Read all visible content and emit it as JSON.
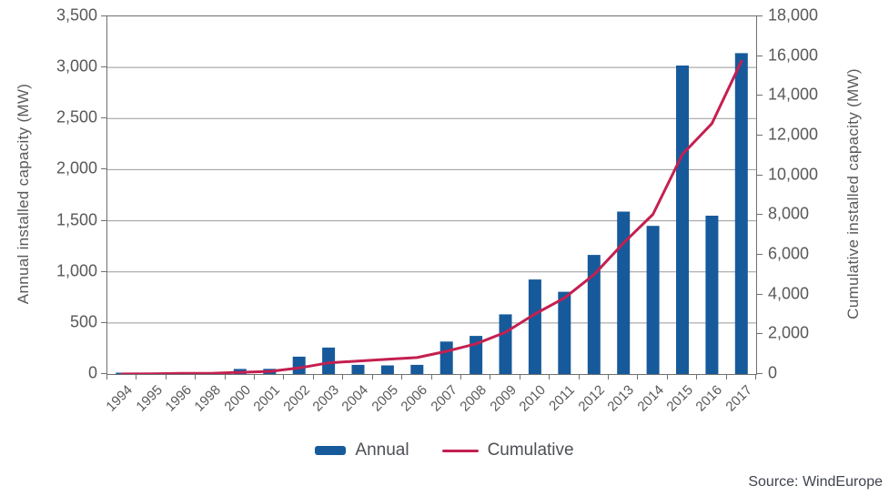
{
  "chart": {
    "left_axis_title": "Annual installed capacity (MW)",
    "right_axis_title": "Cumulative installed capacity (MW)",
    "legend": {
      "annual_label": "Annual",
      "cumulative_label": "Cumulative"
    },
    "source_text": "Source: WindEurope",
    "colors": {
      "bar": "#175A9B",
      "line": "#C42050",
      "grid": "#999999",
      "frame": "#707070",
      "tick_text": "#595959",
      "legend_text": "#4d5055",
      "source_text": "#3f4450"
    }
  },
  "chart_data": {
    "type": "bar",
    "subtype": "combo-bar-line-dual-axis",
    "title": "",
    "xlabel": "",
    "ylabel_left": "Annual installed capacity (MW)",
    "ylabel_right": "Cumulative installed capacity (MW)",
    "ylim_left": [
      0,
      3500
    ],
    "ylim_right": [
      0,
      18000
    ],
    "ytick_step_left": 500,
    "ytick_step_right": 2000,
    "grid": "horizontal",
    "legend_position": "bottom",
    "categories": [
      "1994",
      "1995",
      "1996",
      "1998",
      "2000",
      "2001",
      "2002",
      "2003",
      "2004",
      "2005",
      "2006",
      "2007",
      "2008",
      "2009",
      "2010",
      "2011",
      "2012",
      "2013",
      "2014",
      "2015",
      "2016",
      "2017"
    ],
    "series": [
      {
        "name": "Annual",
        "type": "bar",
        "axis": "left",
        "color": "#175A9B",
        "values": [
          2,
          5,
          17,
          3,
          50,
          51,
          170,
          259,
          90,
          85,
          90,
          318,
          373,
          584,
          925,
          805,
          1166,
          1590,
          1450,
          3019,
          1550,
          3140
        ]
      },
      {
        "name": "Cumulative",
        "type": "line",
        "axis": "right",
        "color": "#C42050",
        "values": [
          5,
          10,
          30,
          35,
          85,
          135,
          305,
          565,
          655,
          740,
          830,
          1145,
          1520,
          2100,
          3025,
          3830,
          5000,
          6590,
          8040,
          11060,
          12610,
          15740
        ]
      }
    ]
  }
}
